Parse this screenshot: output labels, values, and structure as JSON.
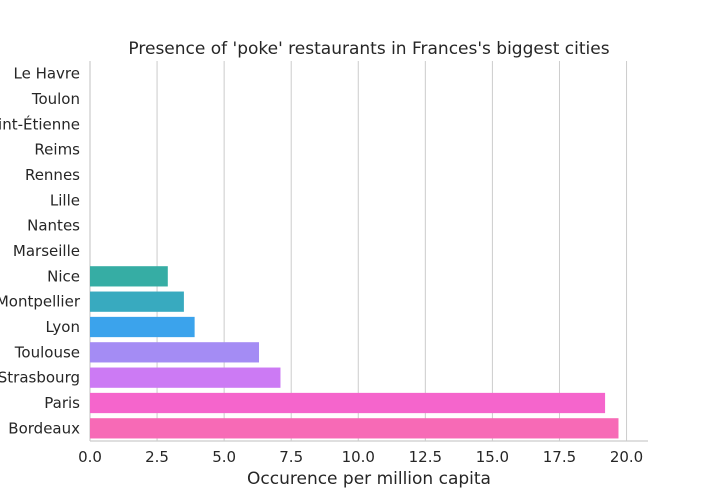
{
  "chart_data": {
    "type": "bar",
    "orientation": "horizontal",
    "title": "Presence of 'poke' restaurants in Frances's biggest cities",
    "xlabel": "Occurence per million capita",
    "ylabel": "",
    "xlim": [
      0,
      20.8
    ],
    "x_ticks": [
      "0.0",
      "2.5",
      "5.0",
      "7.5",
      "10.0",
      "12.5",
      "15.0",
      "17.5",
      "20.0"
    ],
    "grid": "vertical",
    "categories": [
      "Le Havre",
      "Toulon",
      "Saint-Étienne",
      "Reims",
      "Rennes",
      "Lille",
      "Nantes",
      "Marseille",
      "Nice",
      "Montpellier",
      "Lyon",
      "Toulouse",
      "Strasbourg",
      "Paris",
      "Bordeaux"
    ],
    "values": [
      0,
      0,
      0,
      0,
      0,
      0,
      0,
      0,
      2.9,
      3.5,
      3.9,
      6.3,
      7.1,
      19.2,
      19.7
    ],
    "colors": [
      "#f77189",
      "#f7754f",
      "#dc8932",
      "#c39532",
      "#ae9d31",
      "#97a431",
      "#77ab31",
      "#33b07a",
      "#36ada4",
      "#38aabf",
      "#3ba3ec",
      "#a48cf4",
      "#cc7af4",
      "#f565cc",
      "#f76ab6"
    ]
  }
}
